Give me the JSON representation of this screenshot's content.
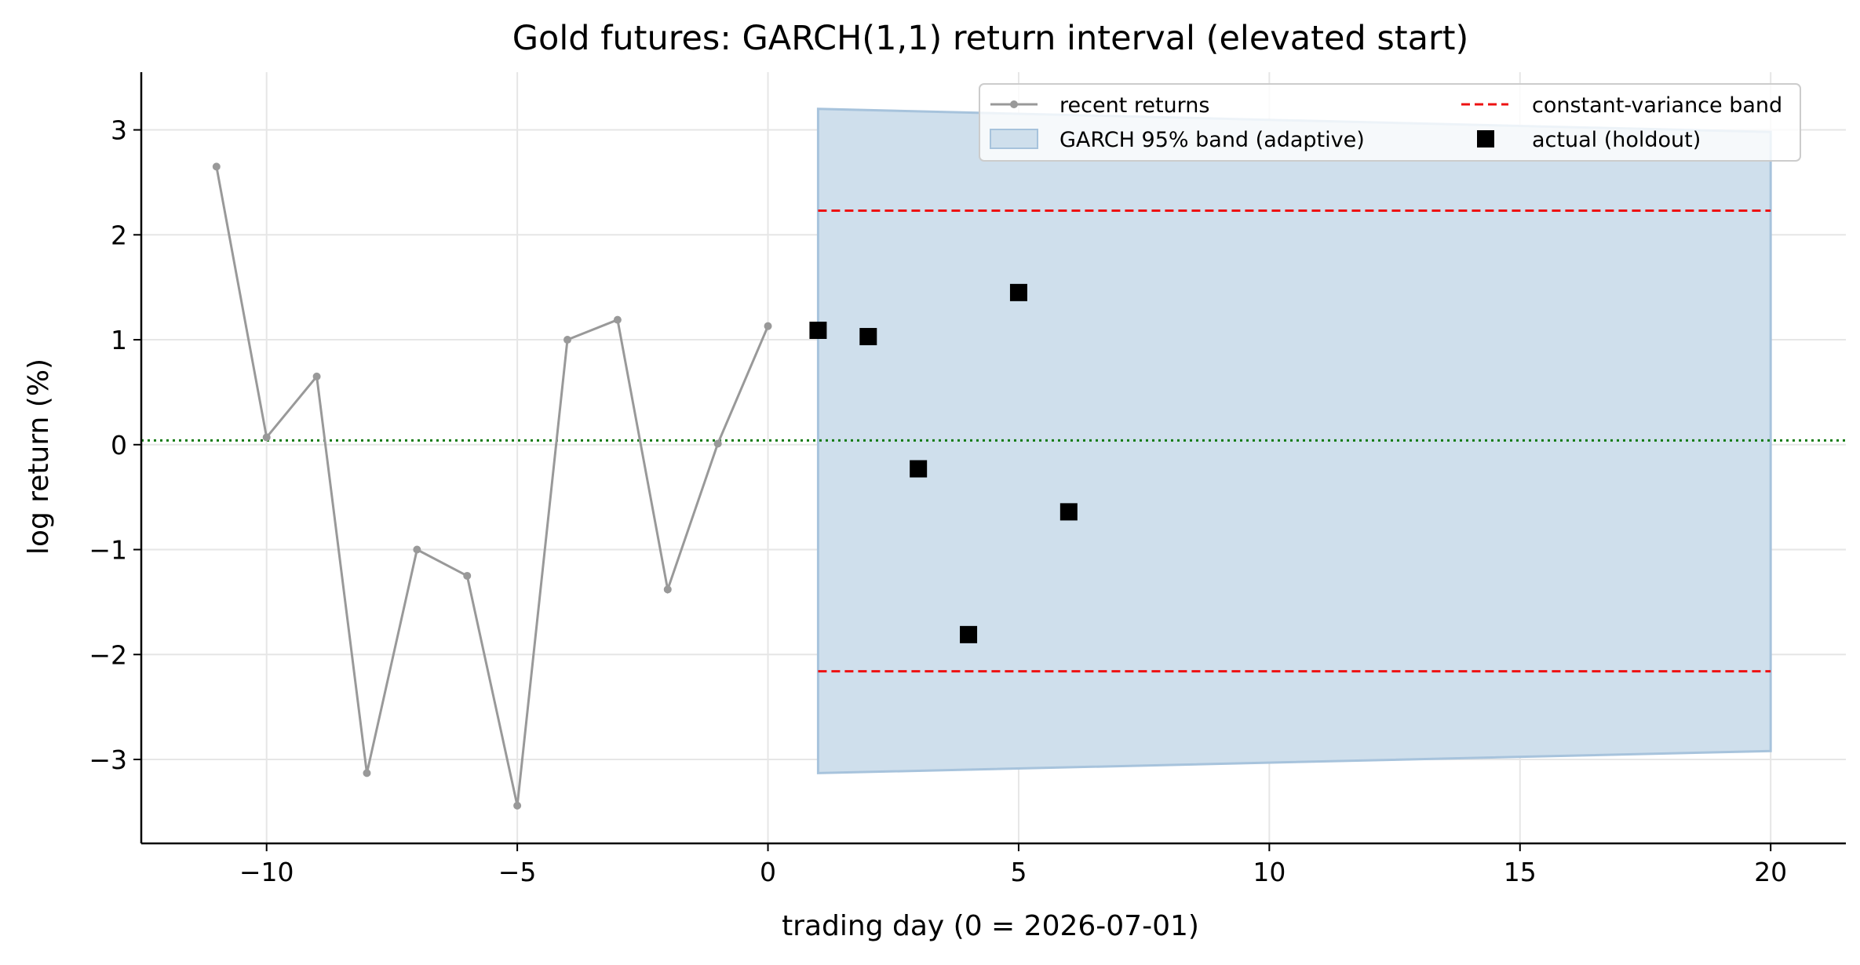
{
  "chart_data": {
    "type": "line",
    "title": "Gold futures: GARCH(1,1) return interval (elevated start)",
    "xlabel": "trading day (0 = 2026-07-01)",
    "ylabel": "log return (%)",
    "xlim": [
      -12.5,
      21.5
    ],
    "ylim": [
      -3.8,
      3.55
    ],
    "x_ticks": [
      -10,
      -5,
      0,
      5,
      10,
      15,
      20
    ],
    "x_tick_labels": [
      "−10",
      "−5",
      "0",
      "5",
      "10",
      "15",
      "20"
    ],
    "y_ticks": [
      3,
      2,
      1,
      0,
      -1,
      -2,
      -3
    ],
    "y_tick_labels": [
      "3",
      "2",
      "1",
      "0",
      "−1",
      "−2",
      "−3"
    ],
    "grid": true,
    "legend_position": "top-right",
    "series": [
      {
        "name": "recent returns",
        "kind": "line-marker",
        "color": "#999999",
        "x": [
          -11,
          -10,
          -9,
          -8,
          -7,
          -6,
          -5,
          -4,
          -3,
          -2,
          -1,
          0
        ],
        "y": [
          2.65,
          0.07,
          0.65,
          -3.13,
          -1.0,
          -1.25,
          -3.44,
          1.0,
          1.19,
          -1.38,
          0.01,
          1.13
        ]
      },
      {
        "name": "GARCH 95% band (adaptive)",
        "kind": "band",
        "color": "#cfdfec",
        "edge_color": "#a7c3dc",
        "x": [
          1,
          20
        ],
        "upper": [
          3.2,
          2.98
        ],
        "lower": [
          -3.13,
          -2.92
        ]
      },
      {
        "name": "constant-variance band",
        "kind": "dashed",
        "color": "#ee1111",
        "x": [
          1,
          20
        ],
        "upper": 2.23,
        "lower": -2.16
      },
      {
        "name": "actual (holdout)",
        "kind": "square",
        "color": "#000000",
        "x": [
          1,
          2,
          3,
          4,
          5,
          6
        ],
        "y": [
          1.09,
          1.03,
          -0.23,
          -1.81,
          1.45,
          -0.64
        ]
      }
    ],
    "reference_line": {
      "y": 0.04,
      "style": "dotted",
      "color": "#117a11"
    }
  }
}
